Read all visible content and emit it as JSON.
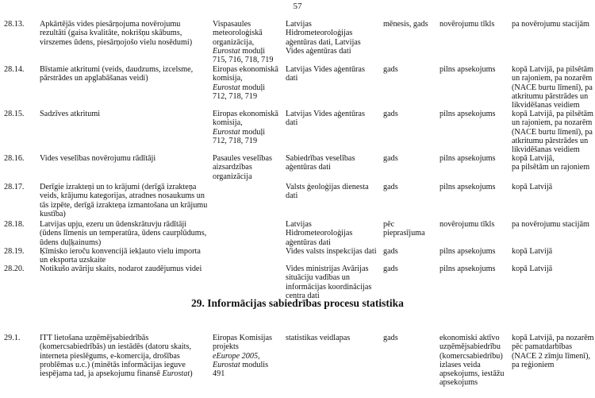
{
  "page_number": "57",
  "section_heading": "29. Informācijas sabiedrības procesu statistika",
  "italic_terms": [
    "Eurostat",
    "eEurope 2005,"
  ],
  "rows": [
    {
      "cells": [
        [
          "28.13."
        ],
        [
          "Apkārtējās vides piesārņojuma novērojumu",
          "rezultāti (gaisa kvalitāte, nokrišņu skābums,",
          "virszemes ūdens, piesārņojošo vielu nosēdumi)"
        ],
        [
          "Vispasaules",
          "meteoroloģiskā",
          "organizācija,",
          "Eurostat moduļi",
          "715, 716, 718, 719"
        ],
        [
          "Latvijas",
          "Hidrometeoroloģijas",
          "aģentūras dati, Latvijas",
          "Vides aģentūras dati"
        ],
        [
          "mēnesis, gads"
        ],
        [
          "novērojumu tīkls"
        ],
        [
          "pa novērojumu stacijām"
        ]
      ]
    },
    {
      "cells": [
        [
          "28.14."
        ],
        [
          "Bīstamie atkritumi (veids, daudzums, izcelsme,",
          "pārstrādes un apglabāšanas veidi)"
        ],
        [
          "Eiropas ekonomiskā",
          "komisija,",
          "Eurostat moduļi",
          "712, 718, 719"
        ],
        [
          "Latvijas Vides aģentūras",
          "dati"
        ],
        [
          "gads"
        ],
        [
          "pilns apsekojums"
        ],
        [
          "kopā Latvijā, pa pilsētām",
          "un rajoniem, pa nozarēm",
          "(NACE burtu līmenī), pa",
          "atkritumu pārstrādes un",
          "likvidēšanas veidiem"
        ]
      ]
    },
    {
      "cells": [
        [
          "28.15."
        ],
        [
          "Sadzīves atkritumi"
        ],
        [
          "Eiropas ekonomiskā",
          "komisija,",
          "Eurostat moduļi",
          "712, 718, 719"
        ],
        [
          "Latvijas Vides aģentūras",
          "dati"
        ],
        [
          "gads"
        ],
        [
          "pilns apsekojums"
        ],
        [
          "kopā Latvijā, pa pilsētām",
          "un rajoniem, pa nozarēm",
          "(NACE burtu līmenī), pa",
          "atkritumu pārstrādes un",
          "likvidēšanas veidiem"
        ]
      ]
    },
    {
      "cells": [
        [
          "28.16."
        ],
        [
          "Vides veselības novērojumu rādītāji"
        ],
        [
          "Pasaules veselības",
          "aizsardzības",
          "organizācija"
        ],
        [
          "Sabiedrības veselības",
          "aģentūras dati"
        ],
        [
          "gads"
        ],
        [
          "pilns apsekojums"
        ],
        [
          "kopā Latvijā,",
          "pa pilsētām un rajoniem"
        ]
      ]
    },
    {
      "cells": [
        [
          "28.17."
        ],
        [
          "Derīgie izrakteņi un to krājumi (derīgā izrakteņa",
          "veids, krājumu kategorijas, atradnes nosaukums un",
          "tās izpēte, derīgā izrakteņa izmantošana un krājumu",
          "kustība)"
        ],
        [],
        [
          "Valsts ģeoloģijas dienesta",
          "dati"
        ],
        [
          "gads"
        ],
        [
          "pilns apsekojums"
        ],
        [
          "kopā Latvijā"
        ]
      ]
    },
    {
      "cells": [
        [
          "28.18."
        ],
        [
          "Latvijas upju, ezeru un ūdenskrātuvju rādītāji",
          "(ūdens līmenis un temperatūra, ūdens caurplūdums,",
          "ūdens duļķainums)"
        ],
        [],
        [
          "Latvijas",
          "Hidrometeoroloģijas",
          "aģentūras dati"
        ],
        [
          "pēc",
          "pieprasījuma"
        ],
        [
          "novērojumu tīkls"
        ],
        [
          "pa novērojumu stacijām"
        ]
      ]
    },
    {
      "cells": [
        [
          "28.19."
        ],
        [
          "Ķīmisko ieroču konvencijā iekļauto vielu importa",
          "un eksporta uzskaite"
        ],
        [],
        [
          "Vides valsts inspekcijas dati"
        ],
        [
          "gads"
        ],
        [
          "pilns apsekojums"
        ],
        [
          "kopā Latvijā"
        ]
      ]
    },
    {
      "cells": [
        [
          "28.20."
        ],
        [
          "Notikušo avāriju skaits, nodarot zaudējumus videi"
        ],
        [],
        [
          "Vides ministrijas Avārijas",
          "situāciju vadības un",
          "informācijas koordinācijas",
          "centra dati"
        ],
        [
          "gads"
        ],
        [
          "pilns apsekojums"
        ],
        [
          "kopā Latvijā"
        ]
      ]
    },
    {
      "cells": [
        [
          "29.1."
        ],
        [
          "ITT lietošana uzņēmējsabiedrībās",
          "(komercsabiedrībās) un iestādēs (datoru skaits,",
          "interneta pieslēgums, e-komercija, drošības",
          "problēmas u.c.) (minētās informācijas ieguve",
          "iespējama tad, ja apsekojumu finansē Eurostat)"
        ],
        [
          "Eiropas Komisijas",
          "projekts",
          "eEurope 2005,",
          "Eurostat modulis",
          "491"
        ],
        [
          "statistikas veidlapas"
        ],
        [
          "gads"
        ],
        [
          "ekonomiski aktīvo",
          "uzņēmējsabiedrību",
          "(komercsabiedrību)",
          "izlases veida",
          "apsekojums, iestāžu",
          "apsekojums"
        ],
        [
          "kopā Latvijā, pa nozarēm",
          "pēc pamatdarbības",
          "(NACE 2 zīmju līmenī),",
          "pa reģioniem"
        ]
      ]
    }
  ]
}
